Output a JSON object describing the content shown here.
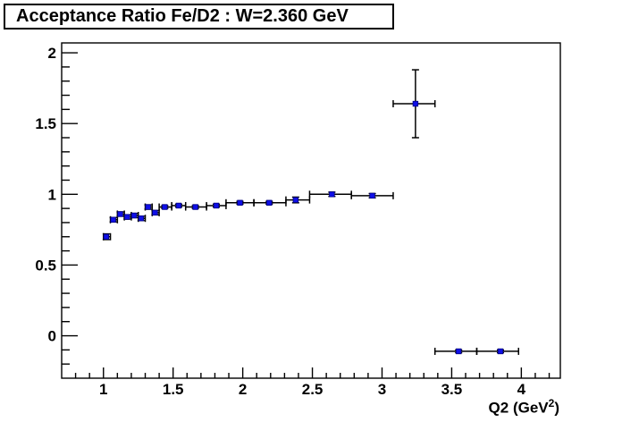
{
  "title": "Acceptance Ratio Fe/D2 : W=2.360 GeV",
  "chart_data": {
    "type": "scatter",
    "title": "Acceptance Ratio Fe/D2 : W=2.360 GeV",
    "xlabel": "Q2 (GeV^2)",
    "xlabel_parts": {
      "prefix": "Q2 (GeV",
      "sup": "2",
      "suffix": ")"
    },
    "ylabel": "",
    "xlim": [
      0.7,
      4.28
    ],
    "ylim": [
      -0.3,
      2.07
    ],
    "grid": false,
    "legend": "none",
    "marker_color": "#0f0fe8",
    "marker_edge_color": "#000080",
    "axis_color": "#000000",
    "x_major_ticks": [
      {
        "value": 1.0,
        "label": "1"
      },
      {
        "value": 1.5,
        "label": "1.5"
      },
      {
        "value": 2.0,
        "label": "2"
      },
      {
        "value": 2.5,
        "label": "2.5"
      },
      {
        "value": 3.0,
        "label": "3"
      },
      {
        "value": 3.5,
        "label": "3.5"
      },
      {
        "value": 4.0,
        "label": "4"
      }
    ],
    "y_major_ticks": [
      {
        "value": 0.0,
        "label": "0"
      },
      {
        "value": 0.5,
        "label": "0.5"
      },
      {
        "value": 1.0,
        "label": "1"
      },
      {
        "value": 1.5,
        "label": "1.5"
      },
      {
        "value": 2.0,
        "label": "2"
      }
    ],
    "x_minor_step": 0.1,
    "y_minor_step": 0.1,
    "points": [
      {
        "q2": 1.02,
        "ratio": 0.7,
        "q2_low": 1.0,
        "q2_high": 1.05,
        "err": 0.02
      },
      {
        "q2": 1.07,
        "ratio": 0.82,
        "q2_low": 1.05,
        "q2_high": 1.1,
        "err": 0.015
      },
      {
        "q2": 1.12,
        "ratio": 0.86,
        "q2_low": 1.1,
        "q2_high": 1.15,
        "err": 0.015
      },
      {
        "q2": 1.17,
        "ratio": 0.84,
        "q2_low": 1.15,
        "q2_high": 1.2,
        "err": 0.015
      },
      {
        "q2": 1.22,
        "ratio": 0.85,
        "q2_low": 1.2,
        "q2_high": 1.25,
        "err": 0.015
      },
      {
        "q2": 1.27,
        "ratio": 0.83,
        "q2_low": 1.25,
        "q2_high": 1.3,
        "err": 0.015
      },
      {
        "q2": 1.32,
        "ratio": 0.91,
        "q2_low": 1.3,
        "q2_high": 1.35,
        "err": 0.015
      },
      {
        "q2": 1.37,
        "ratio": 0.87,
        "q2_low": 1.35,
        "q2_high": 1.4,
        "err": 0.015
      },
      {
        "q2": 1.44,
        "ratio": 0.91,
        "q2_low": 1.4,
        "q2_high": 1.49,
        "err": 0.01
      },
      {
        "q2": 1.54,
        "ratio": 0.92,
        "q2_low": 1.49,
        "q2_high": 1.59,
        "err": 0.01
      },
      {
        "q2": 1.66,
        "ratio": 0.91,
        "q2_low": 1.59,
        "q2_high": 1.74,
        "err": 0.01
      },
      {
        "q2": 1.81,
        "ratio": 0.92,
        "q2_low": 1.74,
        "q2_high": 1.88,
        "err": 0.01
      },
      {
        "q2": 1.98,
        "ratio": 0.94,
        "q2_low": 1.88,
        "q2_high": 2.08,
        "err": 0.01
      },
      {
        "q2": 2.19,
        "ratio": 0.94,
        "q2_low": 2.08,
        "q2_high": 2.31,
        "err": 0.01
      },
      {
        "q2": 2.38,
        "ratio": 0.96,
        "q2_low": 2.31,
        "q2_high": 2.48,
        "err": 0.02
      },
      {
        "q2": 2.64,
        "ratio": 1.0,
        "q2_low": 2.48,
        "q2_high": 2.78,
        "err": 0.015
      },
      {
        "q2": 2.93,
        "ratio": 0.99,
        "q2_low": 2.78,
        "q2_high": 3.08,
        "err": 0.015
      },
      {
        "q2": 3.24,
        "ratio": 1.64,
        "q2_low": 3.08,
        "q2_high": 3.38,
        "err": 0.24
      },
      {
        "q2": 3.55,
        "ratio": -0.11,
        "q2_low": 3.38,
        "q2_high": 3.68,
        "err": 0.01
      },
      {
        "q2": 3.85,
        "ratio": -0.11,
        "q2_low": 3.68,
        "q2_high": 3.98,
        "err": 0.01
      }
    ]
  }
}
